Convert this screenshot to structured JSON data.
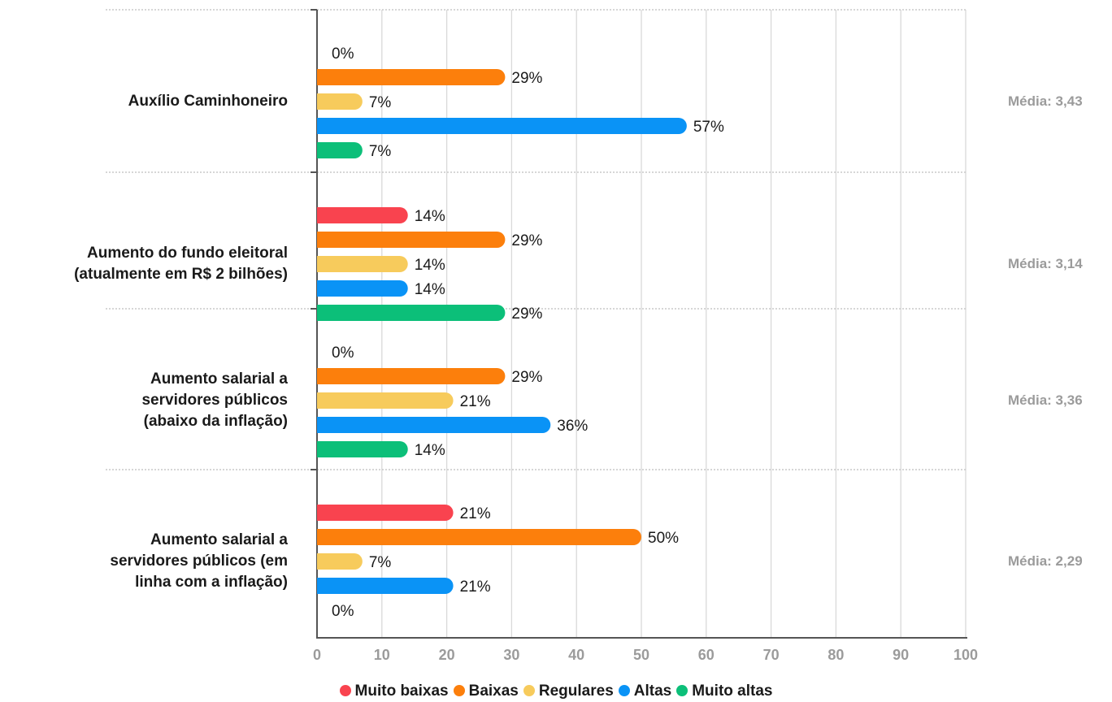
{
  "chart_data": {
    "type": "bar",
    "orientation": "horizontal",
    "xlim": [
      0,
      100
    ],
    "xticks": [
      "0",
      "10",
      "20",
      "30",
      "40",
      "50",
      "60",
      "70",
      "80",
      "90",
      "100"
    ],
    "grid": true,
    "legend_position": "bottom",
    "series": [
      {
        "name": "Muito baixas",
        "color": "#f9434f"
      },
      {
        "name": "Baixas",
        "color": "#fc7f0c"
      },
      {
        "name": "Regulares",
        "color": "#f7cb5c"
      },
      {
        "name": "Altas",
        "color": "#0a93f6"
      },
      {
        "name": "Muito altas",
        "color": "#0cbf79"
      }
    ],
    "categories": [
      {
        "lines": [
          "Auxílio Caminhoneiro"
        ],
        "mean": "Média: 3,43",
        "values": [
          0,
          29,
          7,
          57,
          7
        ],
        "labels": [
          "0%",
          "29%",
          "7%",
          "57%",
          "7%"
        ]
      },
      {
        "lines": [
          "Aumento do fundo eleitoral",
          "(atualmente em R$ 2 bilhões)"
        ],
        "mean": "Média: 3,14",
        "values": [
          14,
          29,
          14,
          14,
          29
        ],
        "labels": [
          "14%",
          "29%",
          "14%",
          "14%",
          "29%"
        ]
      },
      {
        "lines": [
          "Aumento salarial a",
          "servidores públicos",
          "(abaixo da inflação)"
        ],
        "mean": "Média: 3,36",
        "values": [
          0,
          29,
          21,
          36,
          14
        ],
        "labels": [
          "0%",
          "29%",
          "21%",
          "36%",
          "14%"
        ]
      },
      {
        "lines": [
          "Aumento salarial a",
          "servidores públicos (em",
          "linha com a inflação)"
        ],
        "mean": "Média: 2,29",
        "values": [
          21,
          50,
          7,
          21,
          0
        ],
        "labels": [
          "21%",
          "50%",
          "7%",
          "21%",
          "0%"
        ]
      }
    ]
  }
}
